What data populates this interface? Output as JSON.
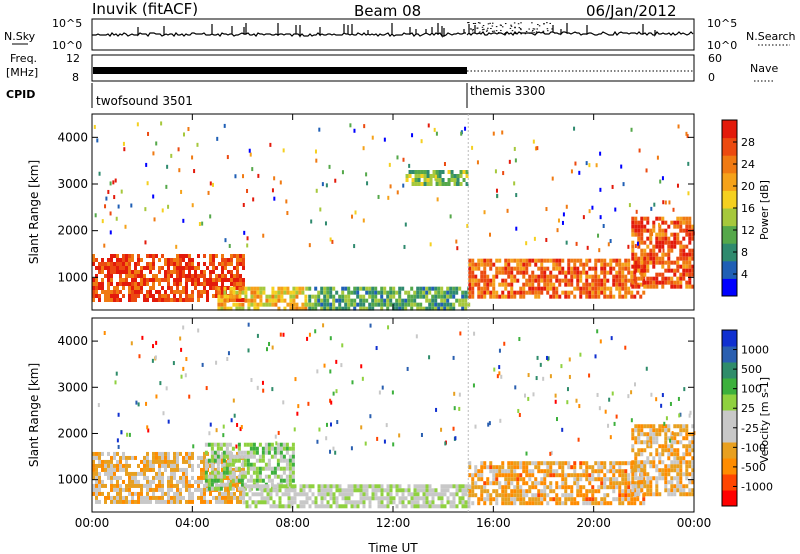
{
  "header": {
    "station": "Inuvik (fitACF)",
    "beam": "Beam 08",
    "date": "06/Jan/2012"
  },
  "panels": {
    "nsky_label": "N.Sky",
    "nsearch_label": "N.Search",
    "freq_label_1": "Freq.",
    "freq_label_2": "[MHz]",
    "nave_label": "Nave",
    "cpid_label": "CPID",
    "nsky_ticks": [
      "10^5",
      "10^0"
    ],
    "nsearch_ticks": [
      "10^5",
      "10^0"
    ],
    "freq_ticks": [
      "12",
      "8"
    ],
    "nave_ticks": [
      "60",
      "0"
    ]
  },
  "cpid": {
    "programs": [
      {
        "name": "twofsound 3501",
        "start_hour": 0
      },
      {
        "name": "themis 3300",
        "start_hour": 15
      }
    ]
  },
  "colors": {
    "power_scale": [
      "#0000ff",
      "#1f5fb5",
      "#2f8a6e",
      "#55a84a",
      "#a6c83c",
      "#f5d020",
      "#f5a21a",
      "#f07a12",
      "#ec4a10",
      "#e31a0b"
    ],
    "velocity_scale": [
      "#ff0000",
      "#ff4500",
      "#ff8c00",
      "#e8a020",
      "#c8c8c8",
      "#c8c8c8",
      "#8fd13f",
      "#3cb03c",
      "#2f8c6a",
      "#2a5fb0",
      "#1030d0"
    ]
  },
  "chart_data": [
    {
      "type": "heatmap",
      "title": "",
      "xlabel": "",
      "ylabel": "Slant Range [km]",
      "xlim": [
        0,
        24
      ],
      "ylim": [
        300,
        4500
      ],
      "x_tick_values": [
        0,
        4,
        8,
        12,
        16,
        20,
        24
      ],
      "y_tick_labels": [
        "1000",
        "2000",
        "3000",
        "4000"
      ],
      "colorbar": {
        "label": "Power [dB]",
        "ticks": [
          "4",
          "8",
          "12",
          "16",
          "20",
          "24",
          "28"
        ],
        "range": [
          0,
          30
        ]
      },
      "regions": [
        {
          "hours": [
            0,
            6
          ],
          "range_km": [
            500,
            1500
          ],
          "value": 26
        },
        {
          "hours": [
            5,
            8.5
          ],
          "range_km": [
            300,
            800
          ],
          "value": 18
        },
        {
          "hours": [
            8.5,
            15
          ],
          "range_km": [
            300,
            800
          ],
          "value": 10
        },
        {
          "hours": [
            12.5,
            15
          ],
          "range_km": [
            3000,
            3300
          ],
          "value": 12
        },
        {
          "hours": [
            15,
            22
          ],
          "range_km": [
            600,
            1400
          ],
          "value": 24
        },
        {
          "hours": [
            21.5,
            24
          ],
          "range_km": [
            800,
            2300
          ],
          "value": 25
        }
      ]
    },
    {
      "type": "heatmap",
      "title": "",
      "xlabel": "Time UT",
      "ylabel": "Slant Range [km]",
      "xlim": [
        0,
        24
      ],
      "ylim": [
        300,
        4500
      ],
      "x_tick_labels": [
        "00:00",
        "04:00",
        "08:00",
        "12:00",
        "16:00",
        "20:00",
        "00:00"
      ],
      "x_tick_values": [
        0,
        4,
        8,
        12,
        16,
        20,
        24
      ],
      "y_tick_labels": [
        "1000",
        "2000",
        "3000",
        "4000"
      ],
      "colorbar": {
        "label": "Velocity [m s-1]",
        "ticks": [
          "-1000",
          "-500",
          "-100",
          "-25",
          "25",
          "100",
          "500",
          "1000"
        ],
        "range": [
          -1000,
          1000
        ]
      },
      "regions": [
        {
          "hours": [
            0,
            6
          ],
          "range_km": [
            500,
            1600
          ],
          "value": -300
        },
        {
          "hours": [
            4.5,
            8
          ],
          "range_km": [
            800,
            1800
          ],
          "value": 150
        },
        {
          "hours": [
            6,
            15
          ],
          "range_km": [
            400,
            900
          ],
          "value": 0
        },
        {
          "hours": [
            15,
            22
          ],
          "range_km": [
            500,
            1400
          ],
          "value": -400
        },
        {
          "hours": [
            21.5,
            24
          ],
          "range_km": [
            700,
            2200
          ],
          "value": -350
        }
      ]
    }
  ]
}
